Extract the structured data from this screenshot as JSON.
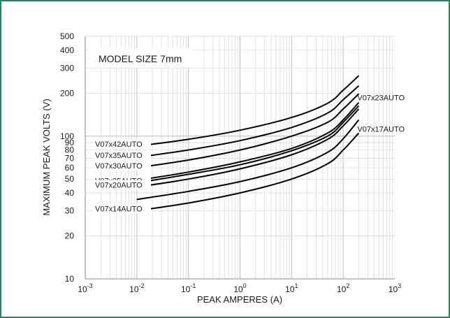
{
  "chart_data": {
    "type": "line",
    "title": "",
    "annotation": "MODEL SIZE 7mm",
    "xlabel": "PEAK AMPERES (A)",
    "ylabel": "MAXIMUM PEAK VOLTS (V)",
    "xscale": "log",
    "yscale": "log",
    "xlim": [
      0.001,
      1000
    ],
    "ylim": [
      10,
      500
    ],
    "grid": true,
    "xticks": [
      {
        "value": 0.001,
        "base": "10",
        "exp": "-3"
      },
      {
        "value": 0.01,
        "base": "10",
        "exp": "-2"
      },
      {
        "value": 0.1,
        "base": "10",
        "exp": "-1"
      },
      {
        "value": 1,
        "base": "10",
        "exp": "0"
      },
      {
        "value": 10,
        "base": "10",
        "exp": "1"
      },
      {
        "value": 100,
        "base": "10",
        "exp": "2"
      },
      {
        "value": 1000,
        "base": "10",
        "exp": "3"
      }
    ],
    "yticks": [
      {
        "value": 500,
        "label": "500"
      },
      {
        "value": 400,
        "label": "400"
      },
      {
        "value": 300,
        "label": "300"
      },
      {
        "value": 200,
        "label": "200"
      },
      {
        "value": 100,
        "label": "100"
      },
      {
        "value": 90,
        "label": "90"
      },
      {
        "value": 80,
        "label": "80"
      },
      {
        "value": 70,
        "label": "70"
      },
      {
        "value": 60,
        "label": "60"
      },
      {
        "value": 50,
        "label": "50"
      },
      {
        "value": 40,
        "label": "40"
      },
      {
        "value": 30,
        "label": "30"
      },
      {
        "value": 20,
        "label": "20"
      },
      {
        "value": 10,
        "label": "10"
      }
    ],
    "series": [
      {
        "name": "V07x42AUTO",
        "label_side": "left",
        "x": [
          0.01,
          0.1,
          1,
          10,
          50,
          100,
          200
        ],
        "y": [
          85,
          95,
          110,
          135,
          170,
          210,
          265
        ]
      },
      {
        "name": "V07x35AUTO",
        "label_side": "left",
        "x": [
          0.01,
          0.1,
          1,
          10,
          50,
          100,
          200
        ],
        "y": [
          71,
          80,
          93,
          115,
          145,
          180,
          225
        ]
      },
      {
        "name": "V07x30AUTO",
        "label_side": "left",
        "x": [
          0.01,
          0.1,
          1,
          10,
          50,
          100,
          200
        ],
        "y": [
          60,
          68,
          80,
          100,
          125,
          155,
          198
        ]
      },
      {
        "name": "V07x23AUTO",
        "label_side": "right",
        "x": [
          0.01,
          0.1,
          1,
          10,
          50,
          100,
          200
        ],
        "y": [
          49,
          56,
          66,
          82,
          105,
          130,
          172
        ]
      },
      {
        "name": "V07x25AUTO",
        "label_side": "left",
        "x": [
          0.01,
          0.1,
          1,
          10,
          50,
          100,
          200
        ],
        "y": [
          47,
          54,
          63,
          79,
          100,
          125,
          163
        ]
      },
      {
        "name": "V07x20AUTO",
        "label_side": "left",
        "x": [
          0.01,
          0.1,
          1,
          10,
          50,
          100,
          200
        ],
        "y": [
          44,
          50,
          59,
          74,
          95,
          118,
          155
        ]
      },
      {
        "name": "V07x17AUTO",
        "label_side": "right",
        "x": [
          0.01,
          0.1,
          1,
          10,
          50,
          100,
          200
        ],
        "y": [
          36,
          41,
          48,
          60,
          77,
          96,
          130
        ]
      },
      {
        "name": "V07x14AUTO",
        "label_side": "left",
        "x": [
          0.01,
          0.1,
          1,
          10,
          50,
          100,
          200
        ],
        "y": [
          30,
          34,
          40,
          50,
          64,
          80,
          105
        ]
      }
    ]
  }
}
